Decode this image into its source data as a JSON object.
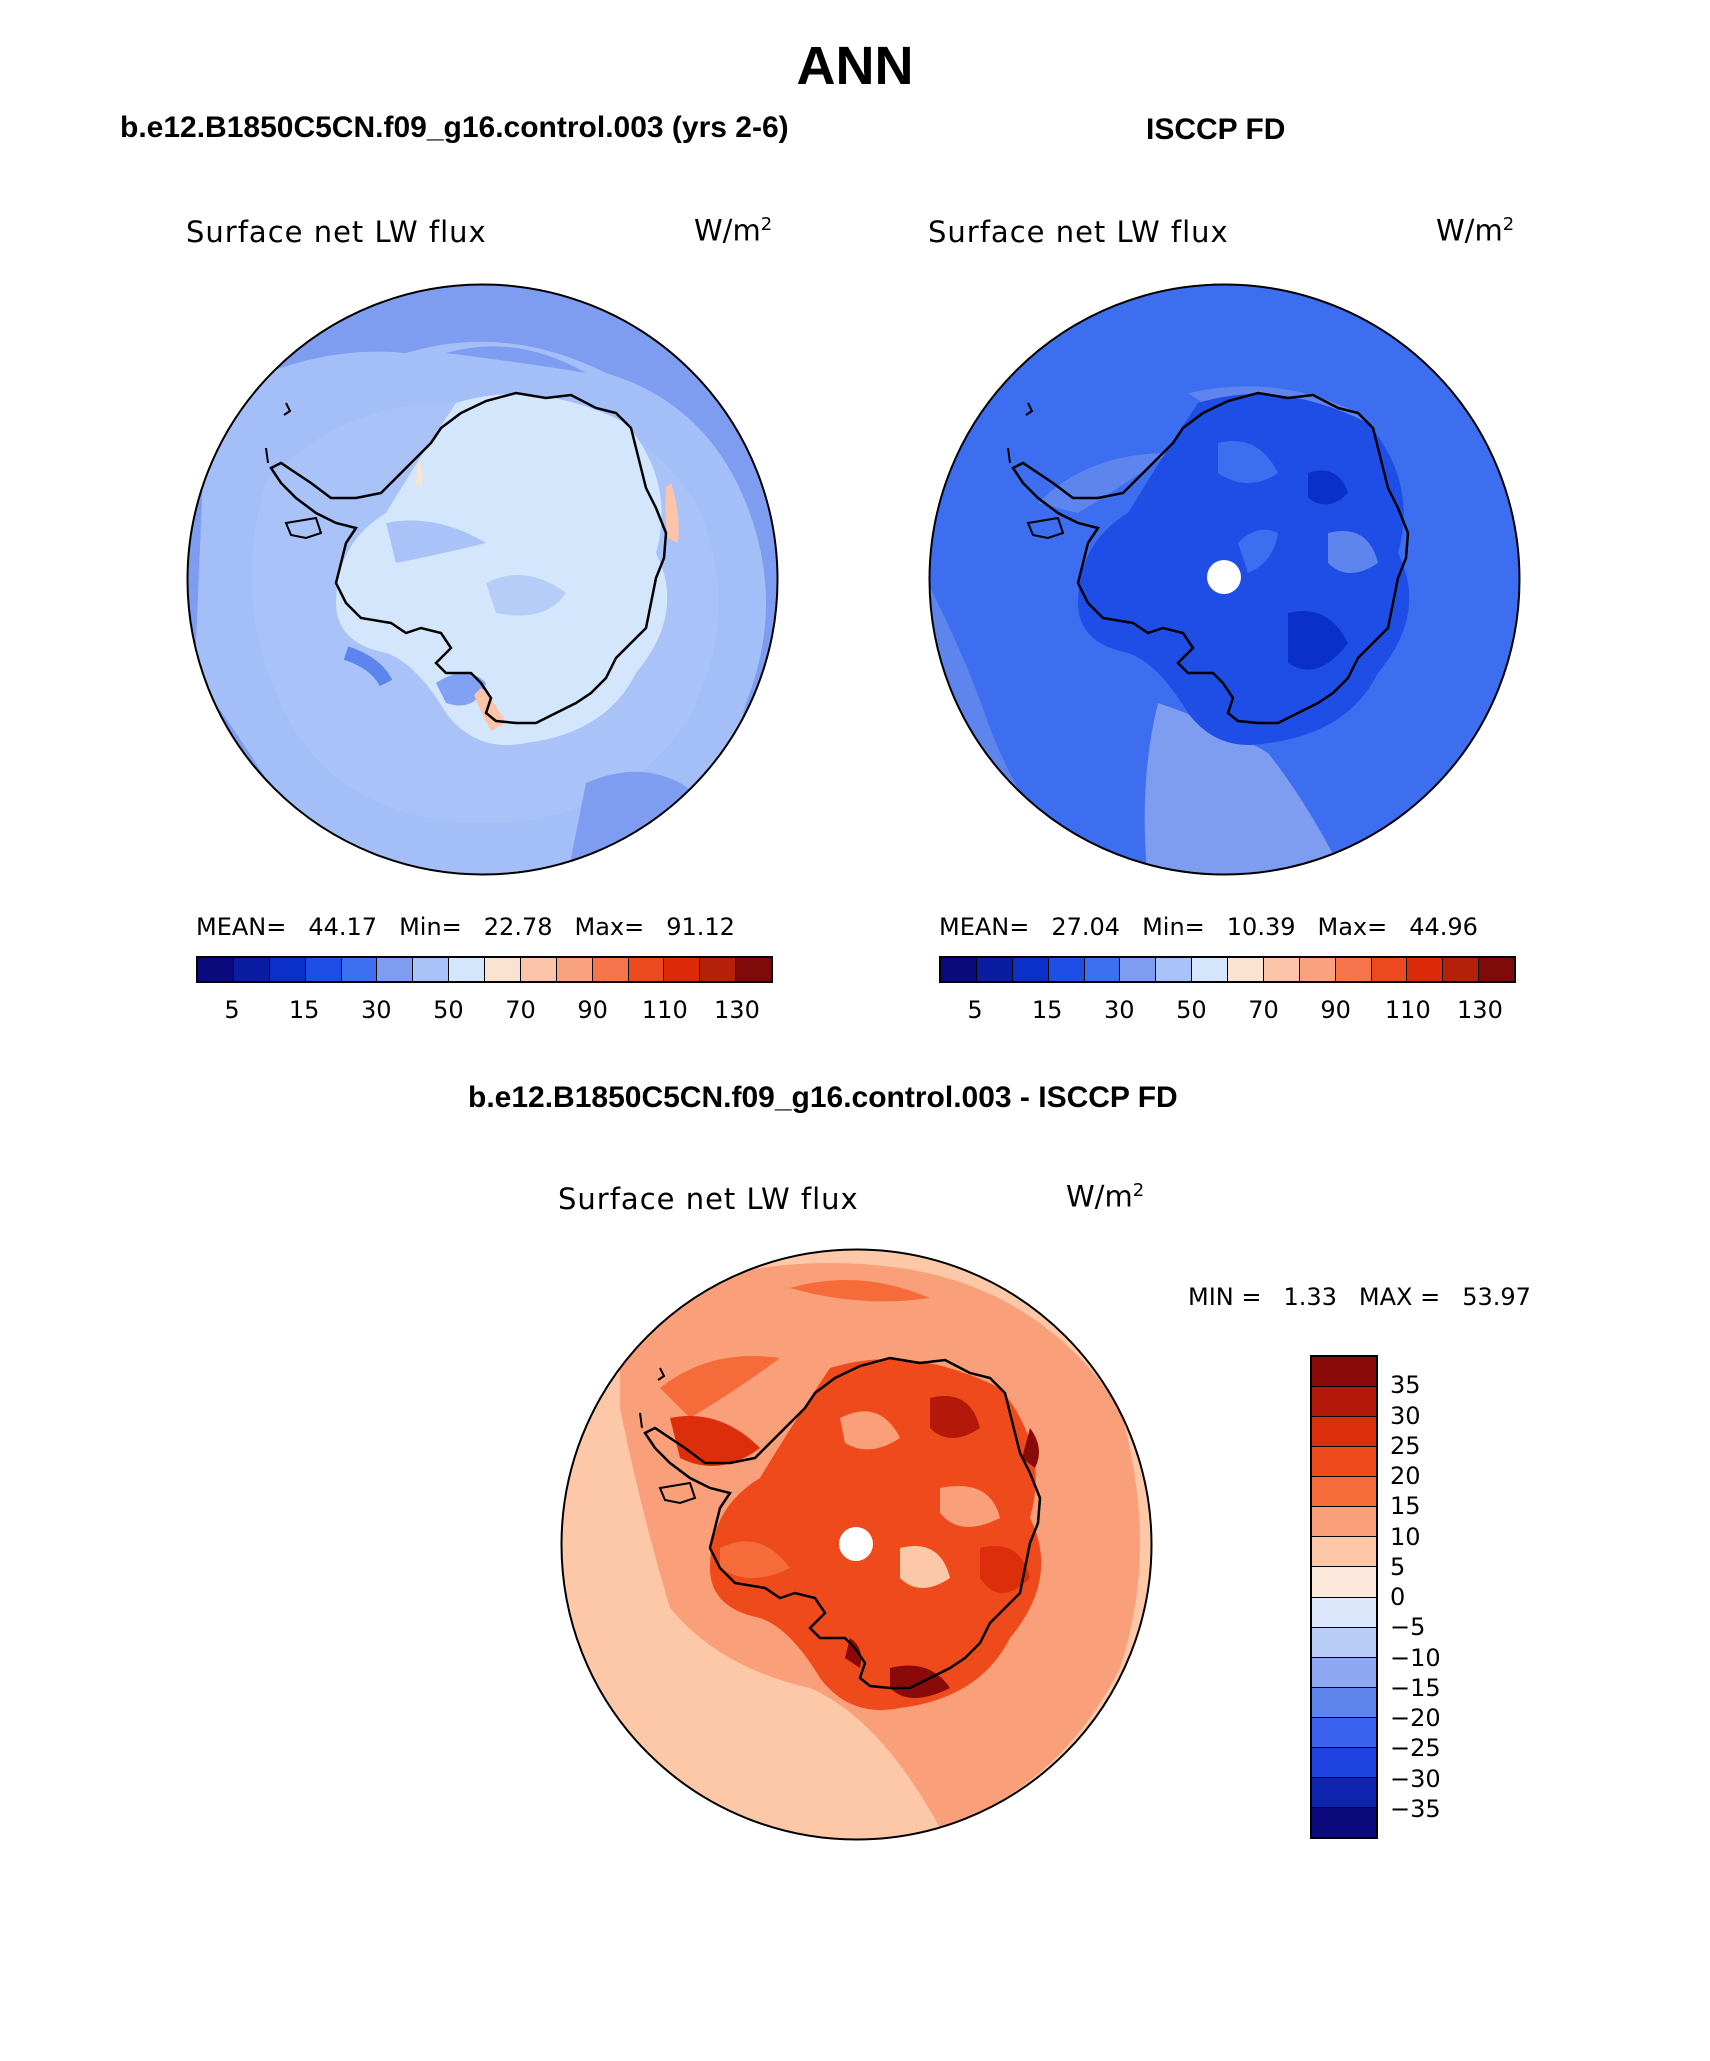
{
  "title": "ANN",
  "panels": [
    {
      "subtitle": "b.e12.B1850C5CN.f09_g16.control.003 (yrs 2-6)",
      "label": "Surface net LW flux",
      "units_base": "W/m",
      "units_exp": "2",
      "mean_label": "MEAN=",
      "mean": "44.17",
      "min_label": "Min=",
      "min": "22.78",
      "max_label": "Max=",
      "max": "91.12"
    },
    {
      "subtitle": "ISCCP FD",
      "label": "Surface net LW flux",
      "units_base": "W/m",
      "units_exp": "2",
      "mean_label": "MEAN=",
      "mean": "27.04",
      "min_label": "Min=",
      "min": "10.39",
      "max_label": "Max=",
      "max": "44.96"
    }
  ],
  "abs_colorbar": {
    "colors": [
      "#0a0a7d",
      "#0a1ca0",
      "#0b30c8",
      "#1f4ee6",
      "#3d6ef0",
      "#7e9cf0",
      "#a9c2f7",
      "#d3e6fb",
      "#fbe3d2",
      "#fcc4a8",
      "#f9a27f",
      "#f5744b",
      "#ee4a22",
      "#dd2a0a",
      "#b5200a",
      "#800a0a"
    ],
    "ticks": [
      "5",
      "15",
      "30",
      "50",
      "70",
      "90",
      "110",
      "130"
    ]
  },
  "diff_panel": {
    "subtitle": "b.e12.B1850C5CN.f09_g16.control.003 - ISCCP FD",
    "label": "Surface net LW flux",
    "units_base": "W/m",
    "units_exp": "2",
    "min_label": "MIN =",
    "min": "1.33",
    "max_label": "MAX =",
    "max": "53.97"
  },
  "diff_colorbar": {
    "colors": [
      "#8a0a0a",
      "#b4180a",
      "#dc2e0a",
      "#ee4a1c",
      "#f56c3a",
      "#f9a07a",
      "#fcc8a8",
      "#fde8dc",
      "#dbe8fb",
      "#b8cef7",
      "#8ea9f2",
      "#5e84ee",
      "#3a62ee",
      "#1e42e0",
      "#0d24ae",
      "#0a0a7d"
    ],
    "ticks": [
      "35",
      "30",
      "25",
      "20",
      "15",
      "10",
      "5",
      "0",
      "−5",
      "−10",
      "−15",
      "−20",
      "−25",
      "−30",
      "−35"
    ]
  }
}
